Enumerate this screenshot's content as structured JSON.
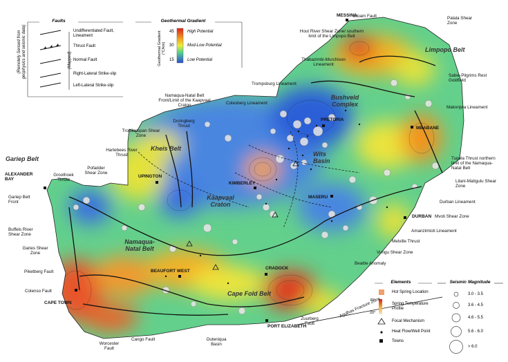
{
  "faults_legend": {
    "title": "Faults",
    "side_label": "(Remotely Sensed from geophysics and seismic data)",
    "mapped_label": "(Mapped)",
    "items": [
      "Undifferentiated Fault, Lineament",
      "Thrust Fault",
      "Normal Fault",
      "Right-Lateral Strike-slip",
      "Left-Lateral Strike-slip"
    ]
  },
  "gradient_legend": {
    "title": "Geothermal Gradient",
    "axis_label": "Geothermal Gradient (°C/km)",
    "ticks": [
      "45",
      "30",
      "15"
    ],
    "classes": [
      "High Potential",
      "Mod-Low Potential",
      "Low Potential"
    ]
  },
  "elements_legend": {
    "title": "Elements",
    "items": [
      "Hot Spring Location",
      "Spring Temperature Profile",
      "Focal Mechanism",
      "Heat Flow/Well Point",
      "Towns"
    ],
    "temp_ticks": [
      "70°",
      "20°"
    ]
  },
  "seismic_legend": {
    "title": "Seismic Magnitude",
    "items": [
      "3.0 - 3.5",
      "3.6 - 4.5",
      "4.6 - 5.5",
      "5.6 - 6.0",
      "> 6.0"
    ]
  },
  "towns": {
    "messina": "MESSINA",
    "pretoria": "PRETORIA",
    "mbabane": "MBABANE",
    "alexander_bay": "ALEXANDER BAY",
    "upington": "UPINGTON",
    "kimberley": "KIMBERLEY",
    "maseru": "MASERU",
    "durban": "DURBAN",
    "beaufort_west": "BEAUFORT WEST",
    "cradock": "CRADOCK",
    "cape_town": "CAPE TOWN",
    "port_elizabeth": "PORT ELIZABETH"
  },
  "regions": {
    "limpopo": "Limpopo Belt",
    "bushveld": "Bushveld Complex",
    "wits": "Wits Basin",
    "kheis": "Kheis Belt",
    "kaapvaal": "Kaapvaal Craton",
    "gariep": "Gariep Belt",
    "namaqua": "Namaqua-Natal Belt",
    "cape_fold": "Cape Fold Belt"
  },
  "features": {
    "siloam": "Siloam Fault",
    "palala": "Palala Shear Zone",
    "hout_river": "Hout River Shear Zone/ southern limit of the Limpopo Belt",
    "thabazimbi": "Thabazimbi-Murchison Lineament",
    "sabie": "Sabie-Pilgrims Rest Goldfield",
    "makonjwa": "Makonjwa Lineament",
    "trompsburg": "Trompsburg Lineament",
    "colesberg": "Colesberg Lineament",
    "namaqua_front": "Namaqua-Natal Belt Front/Limit of the Kaapvaal Craton",
    "doringberg": "Doringberg Thrust",
    "trooilapspan": "Trooilapspan Shear Zone",
    "hartebees": "Hartebees River Thrust",
    "groothoek": "Groothoek Thrust",
    "pofadder": "Pofadder Shear Zone",
    "gariep_front": "Gariep Belt Front",
    "buffels": "Buffels River Shear Zone",
    "garies": "Garies Shear Zone",
    "piketberg": "Piketberg Fault",
    "colenso": "Colenso Fault",
    "worcester": "Worcester Fault",
    "cango": "Cango Fault",
    "outeniqua": "Outeniqua Basin",
    "zuurberg": "Zuurberg Fault",
    "agulhas": "Agulhas Fracture Zone",
    "beattie": "Beattie Anomaly",
    "vungu": "Vungu Shear Zone",
    "melville": "Melville Thrust",
    "amanzimtoti": "Amanzimtoti Lineament",
    "mvoti": "Mvoti Shear Zone",
    "durban_lin": "Durban Lineament",
    "lilani": "Lilani-Matigulu Shear Zone",
    "tugela": "Tugela Thrust northern limit of the Namaqua-Natal Belt"
  },
  "colors": {
    "high": "#e53b1f",
    "mid": "#e8e838",
    "low": "#2b62d8",
    "sea": "#ffffff"
  }
}
